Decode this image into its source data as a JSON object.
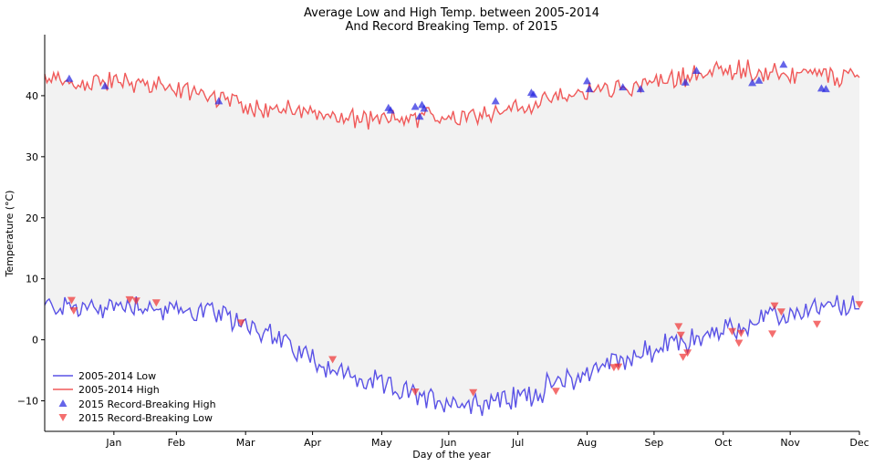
{
  "chart_data": {
    "type": "line",
    "title": "Average Low and High Temp. between 2005-2014",
    "subtitle": "And Record Breaking Temp. of 2015",
    "xlabel": "Day of the year",
    "ylabel": "Temperature (°C)",
    "xlim": [
      0,
      365
    ],
    "ylim": [
      -15,
      50
    ],
    "x_ticks": [
      {
        "day": 31,
        "label": "Jan"
      },
      {
        "day": 59,
        "label": "Feb"
      },
      {
        "day": 90,
        "label": "Mar"
      },
      {
        "day": 120,
        "label": "Apr"
      },
      {
        "day": 151,
        "label": "May"
      },
      {
        "day": 181,
        "label": "Jun"
      },
      {
        "day": 212,
        "label": "Jul"
      },
      {
        "day": 243,
        "label": "Aug"
      },
      {
        "day": 273,
        "label": "Sep"
      },
      {
        "day": 304,
        "label": "Oct"
      },
      {
        "day": 334,
        "label": "Nov"
      },
      {
        "day": 365,
        "label": "Dec"
      }
    ],
    "y_ticks": [
      -10,
      0,
      10,
      20,
      30,
      40
    ],
    "fill_between": {
      "color": "#f2f2f2"
    },
    "series": [
      {
        "name": "2005-2014 Low",
        "kind": "line",
        "color": "#5a52e6",
        "x": [
          0,
          10,
          20,
          31,
          40,
          50,
          59,
          70,
          80,
          90,
          100,
          110,
          120,
          130,
          140,
          151,
          160,
          170,
          181,
          190,
          200,
          212,
          220,
          230,
          243,
          250,
          260,
          273,
          280,
          290,
          300,
          310,
          320,
          334,
          345,
          355,
          365
        ],
        "y": [
          5.5,
          5.5,
          5,
          5.5,
          6,
          5,
          4.5,
          5,
          3.5,
          3,
          1,
          -1,
          -3,
          -5,
          -6.5,
          -7.5,
          -8.5,
          -9.5,
          -10,
          -10.5,
          -10,
          -9.5,
          -8.5,
          -7,
          -5.5,
          -4,
          -3,
          -2,
          -0.5,
          0,
          1,
          2,
          3,
          4,
          5,
          5.5,
          5
        ]
      },
      {
        "name": "2005-2014 High",
        "kind": "line",
        "color": "#f05a5a",
        "x": [
          0,
          10,
          20,
          31,
          40,
          50,
          59,
          70,
          80,
          90,
          100,
          110,
          120,
          130,
          140,
          151,
          160,
          170,
          181,
          190,
          200,
          212,
          220,
          230,
          243,
          250,
          260,
          273,
          280,
          290,
          300,
          310,
          320,
          334,
          345,
          355,
          365
        ],
        "y": [
          42.5,
          42,
          42,
          42.5,
          42,
          41.5,
          41,
          40.5,
          39.5,
          38.5,
          38,
          37.5,
          37,
          36.5,
          36,
          36,
          36,
          36.5,
          36.5,
          37,
          37.5,
          38,
          38.5,
          39.5,
          40.5,
          41,
          41.5,
          42,
          42.5,
          43.5,
          44,
          44.5,
          44,
          43.5,
          43.5,
          43,
          43
        ]
      },
      {
        "name": "2015 Record-Breaking High",
        "kind": "scatter",
        "marker": "triangle-up",
        "color": "#2424e0",
        "points": [
          [
            11,
            42.8
          ],
          [
            27,
            41.6
          ],
          [
            78,
            39.1
          ],
          [
            154,
            38.0
          ],
          [
            155,
            37.6
          ],
          [
            166,
            38.2
          ],
          [
            168,
            36.6
          ],
          [
            169,
            38.5
          ],
          [
            170,
            37.9
          ],
          [
            202,
            39.1
          ],
          [
            218,
            40.5
          ],
          [
            219,
            40.2
          ],
          [
            243,
            42.4
          ],
          [
            244,
            41.1
          ],
          [
            259,
            41.4
          ],
          [
            267,
            41.1
          ],
          [
            287,
            42.2
          ],
          [
            292,
            44.1
          ],
          [
            317,
            42.1
          ],
          [
            320,
            42.5
          ],
          [
            331,
            45.1
          ],
          [
            348,
            41.2
          ],
          [
            350,
            41.1
          ]
        ]
      },
      {
        "name": "2015 Record-Breaking Low",
        "kind": "scatter",
        "marker": "triangle-down",
        "color": "#f03030",
        "points": [
          [
            12,
            6.5
          ],
          [
            13,
            4.8
          ],
          [
            38,
            6.6
          ],
          [
            41,
            6.4
          ],
          [
            50,
            6.1
          ],
          [
            88,
            2.8
          ],
          [
            129,
            -3.2
          ],
          [
            166,
            -8.5
          ],
          [
            192,
            -8.6
          ],
          [
            229,
            -8.4
          ],
          [
            255,
            -4.5
          ],
          [
            257,
            -4.4
          ],
          [
            284,
            2.2
          ],
          [
            285,
            0.8
          ],
          [
            286,
            -2.8
          ],
          [
            288,
            -2.1
          ],
          [
            308,
            1.4
          ],
          [
            311,
            -0.5
          ],
          [
            312,
            1.1
          ],
          [
            326,
            1.0
          ],
          [
            327,
            5.6
          ],
          [
            330,
            4.6
          ],
          [
            346,
            2.6
          ],
          [
            365,
            5.8
          ]
        ]
      }
    ],
    "legend": {
      "position": "lower-left"
    },
    "grid": false
  }
}
